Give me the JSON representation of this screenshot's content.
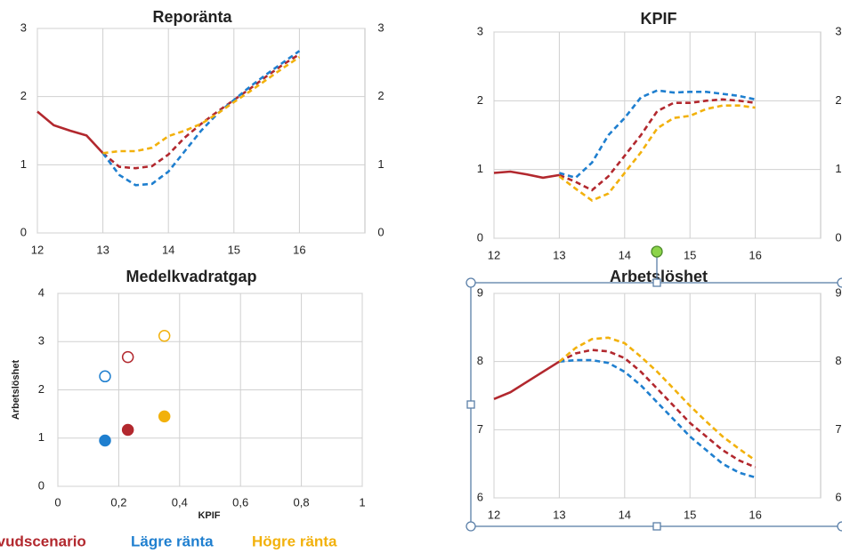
{
  "chart_data": [
    {
      "type": "line",
      "title": "Reporänta",
      "forecast_start": 13,
      "x": [
        12,
        12.25,
        12.5,
        12.75,
        13,
        13.25,
        13.5,
        13.75,
        14,
        14.25,
        14.5,
        14.75,
        15,
        15.25,
        15.5,
        15.75,
        16
      ],
      "series": [
        {
          "name": "Huvudscenario",
          "color": "#b2282e",
          "values": [
            1.78,
            1.58,
            1.5,
            1.43,
            1.17,
            0.97,
            0.95,
            0.98,
            1.15,
            1.4,
            1.6,
            1.78,
            1.95,
            2.12,
            2.3,
            2.47,
            2.62
          ]
        },
        {
          "name": "Lägre ränta",
          "color": "#1f7fcf",
          "values": [
            null,
            null,
            null,
            null,
            1.17,
            0.85,
            0.7,
            0.72,
            0.9,
            1.2,
            1.5,
            1.75,
            1.95,
            2.15,
            2.33,
            2.5,
            2.67
          ]
        },
        {
          "name": "Högre ränta",
          "color": "#f2b10c",
          "values": [
            null,
            null,
            null,
            null,
            1.17,
            1.2,
            1.2,
            1.25,
            1.42,
            1.5,
            1.6,
            1.75,
            1.92,
            2.08,
            2.25,
            2.42,
            2.58
          ]
        }
      ],
      "xlim": [
        12,
        17
      ],
      "xticks": [
        12,
        13,
        14,
        15,
        16
      ],
      "ylim": [
        0,
        3
      ],
      "yticks": [
        0,
        1,
        2,
        3
      ],
      "y2lim": [
        0,
        3
      ],
      "y2ticks": [
        0,
        1,
        2,
        3
      ],
      "grid": true
    },
    {
      "type": "line",
      "title": "KPIF",
      "forecast_start": 13,
      "x": [
        12,
        12.25,
        12.5,
        12.75,
        13,
        13.25,
        13.5,
        13.75,
        14,
        14.25,
        14.5,
        14.75,
        15,
        15.25,
        15.5,
        15.75,
        16
      ],
      "series": [
        {
          "name": "Huvudscenario",
          "color": "#b2282e",
          "values": [
            0.95,
            0.97,
            0.93,
            0.88,
            0.92,
            0.82,
            0.7,
            0.9,
            1.2,
            1.5,
            1.85,
            1.97,
            1.97,
            2.0,
            2.02,
            2.0,
            1.97
          ]
        },
        {
          "name": "Lägre ränta",
          "color": "#1f7fcf",
          "values": [
            null,
            null,
            null,
            null,
            0.95,
            0.88,
            1.1,
            1.5,
            1.75,
            2.05,
            2.15,
            2.12,
            2.13,
            2.13,
            2.1,
            2.07,
            2.02
          ]
        },
        {
          "name": "Högre ränta",
          "color": "#f2b10c",
          "values": [
            null,
            null,
            null,
            null,
            0.9,
            0.72,
            0.55,
            0.65,
            0.95,
            1.25,
            1.6,
            1.75,
            1.78,
            1.88,
            1.93,
            1.93,
            1.9
          ]
        }
      ],
      "xlim": [
        12,
        17
      ],
      "xticks": [
        12,
        13,
        14,
        15,
        16
      ],
      "ylim": [
        0,
        3
      ],
      "yticks": [
        0,
        1,
        2,
        3
      ],
      "y2lim": [
        0,
        3
      ],
      "y2ticks": [
        0,
        1,
        2,
        3
      ],
      "grid": true
    },
    {
      "type": "scatter",
      "title": "Medelkvadratgap",
      "xlabel": "KPIF",
      "ylabel": "Arbetslöshet",
      "marker_fill": [
        true,
        false
      ],
      "series": [
        {
          "name": "Huvudscenario",
          "color": "#b2282e",
          "x": [
            0.23,
            0.23
          ],
          "values": [
            1.17,
            2.68
          ]
        },
        {
          "name": "Lägre ränta",
          "color": "#1f7fcf",
          "x": [
            0.155,
            0.155
          ],
          "values": [
            0.95,
            2.28
          ]
        },
        {
          "name": "Högre ränta",
          "color": "#f2b10c",
          "x": [
            0.35,
            0.35
          ],
          "values": [
            1.45,
            3.12
          ]
        }
      ],
      "xlim": [
        0,
        1
      ],
      "xticks": [
        0,
        {
          "value": 0.2,
          "label": "0,2"
        },
        {
          "value": 0.4,
          "label": "0,4"
        },
        {
          "value": 0.6,
          "label": "0,6"
        },
        {
          "value": 0.8,
          "label": "0,8"
        },
        1
      ],
      "ylim": [
        0,
        4
      ],
      "yticks": [
        0,
        1,
        2,
        3,
        4
      ],
      "grid": true
    },
    {
      "type": "line",
      "title": "Arbetslöshet",
      "forecast_start": 13,
      "x": [
        12,
        12.25,
        12.5,
        12.75,
        13,
        13.25,
        13.5,
        13.75,
        14,
        14.25,
        14.5,
        14.75,
        15,
        15.25,
        15.5,
        15.75,
        16
      ],
      "series": [
        {
          "name": "Huvudscenario",
          "color": "#b2282e",
          "values": [
            7.45,
            7.55,
            7.7,
            7.85,
            8.0,
            8.12,
            8.17,
            8.15,
            8.05,
            7.85,
            7.6,
            7.35,
            7.1,
            6.9,
            6.7,
            6.55,
            6.45
          ]
        },
        {
          "name": "Lägre ränta",
          "color": "#1f7fcf",
          "values": [
            null,
            null,
            null,
            null,
            8.0,
            8.02,
            8.02,
            7.98,
            7.85,
            7.65,
            7.4,
            7.15,
            6.9,
            6.7,
            6.5,
            6.37,
            6.3
          ]
        },
        {
          "name": "Högre ränta",
          "color": "#f2b10c",
          "values": [
            null,
            null,
            null,
            null,
            8.0,
            8.2,
            8.33,
            8.35,
            8.27,
            8.07,
            7.85,
            7.6,
            7.35,
            7.12,
            6.9,
            6.72,
            6.55
          ]
        }
      ],
      "xlim": [
        12,
        17
      ],
      "xticks": [
        12,
        13,
        14,
        15,
        16
      ],
      "ylim": [
        6,
        9
      ],
      "yticks": [
        6,
        7,
        8,
        9
      ],
      "y2lim": [
        6,
        9
      ],
      "y2ticks": [
        6,
        7,
        8,
        9
      ],
      "grid": true
    }
  ]
}
